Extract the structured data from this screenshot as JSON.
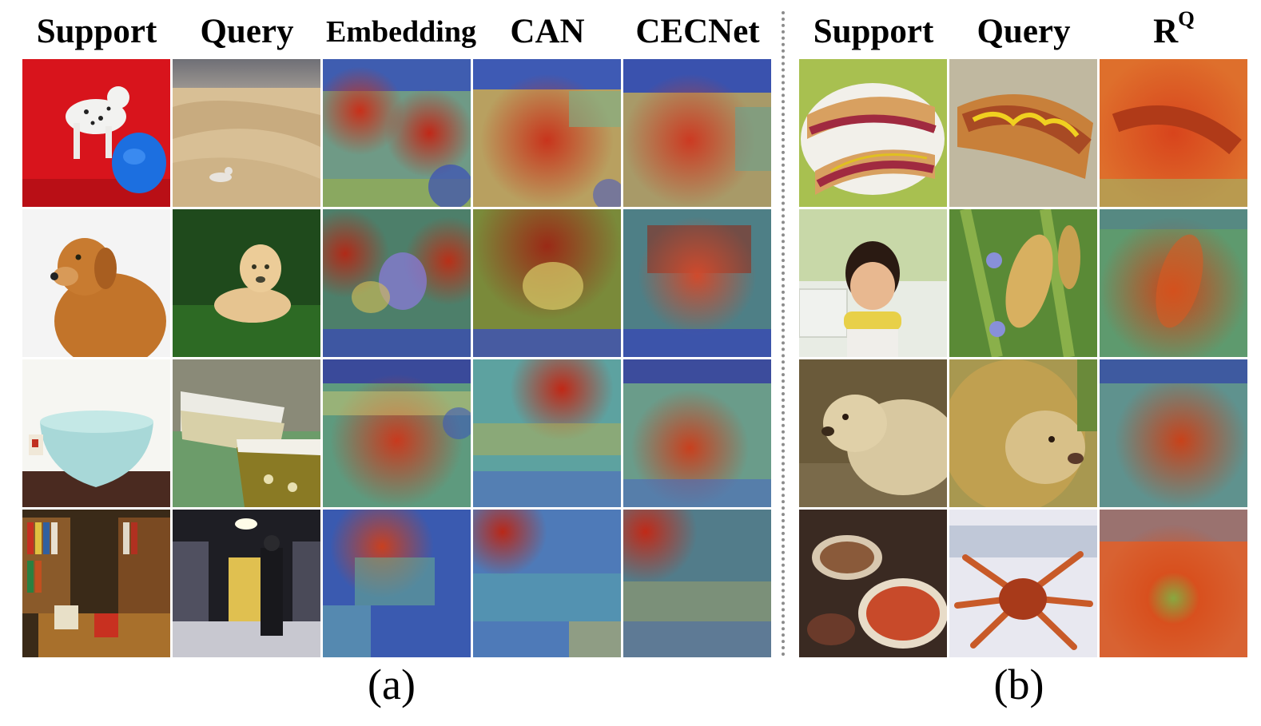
{
  "panel_a": {
    "headers": [
      "Support",
      "Query",
      "Embedding",
      "CAN",
      "CECNet"
    ],
    "caption": "(a)",
    "rows": [
      {
        "support": "dalmatian-with-blue-frisbee",
        "query": "dalmatian-on-sand-dunes"
      },
      {
        "support": "golden-retriever-portrait",
        "query": "puppy-lying-on-grass"
      },
      {
        "support": "light-blue-mixing-bowl",
        "query": "patterned-casserole-dishes"
      },
      {
        "support": "bookstore-shelves",
        "query": "man-reading-in-bookstore-aisle"
      }
    ]
  },
  "panel_b": {
    "headers": [
      "Support",
      "Query",
      "R",
      "Q"
    ],
    "caption": "(b)",
    "rows": [
      {
        "support": "hot-dogs-on-plate",
        "query": "hot-dog-with-mustard"
      },
      {
        "support": "boy-eating-corn",
        "query": "corn-plants"
      },
      {
        "support": "lioness",
        "query": "lion-head"
      },
      {
        "support": "seafood-platter",
        "query": "king-crab"
      }
    ]
  }
}
